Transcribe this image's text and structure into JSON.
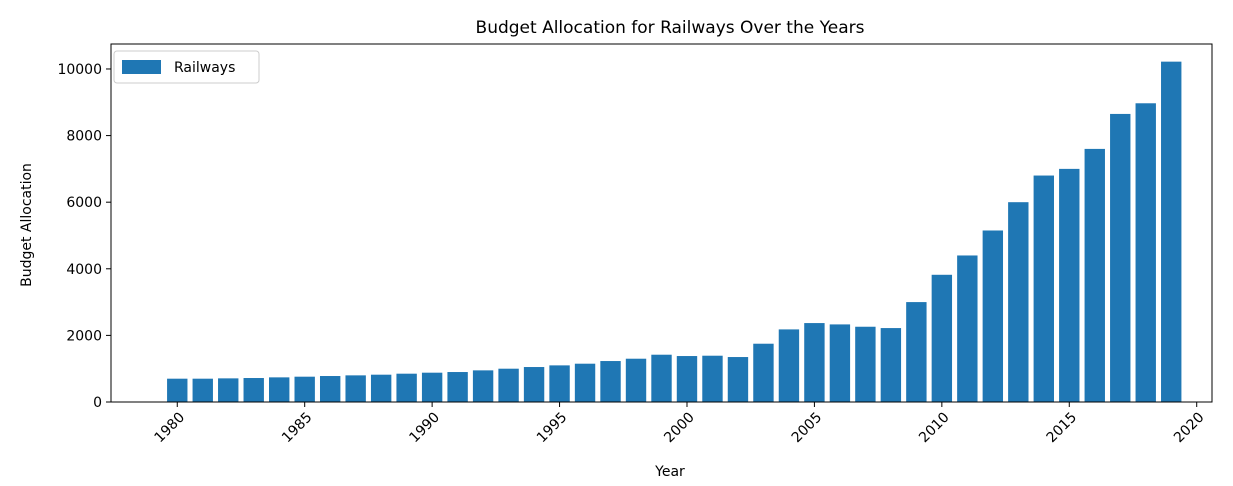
{
  "chart_data": {
    "type": "bar",
    "title": "Budget Allocation for Railways Over the Years",
    "xlabel": "Year",
    "ylabel": "Budget Allocation",
    "xlim": [
      1977.4,
      2020.6
    ],
    "ylim": [
      0,
      10750
    ],
    "xticks": [
      1980,
      1985,
      1990,
      1995,
      2000,
      2005,
      2010,
      2015,
      2020
    ],
    "yticks": [
      0,
      2000,
      4000,
      6000,
      8000,
      10000
    ],
    "grid": false,
    "legend": {
      "position": "top-left",
      "entries": [
        "Railways"
      ]
    },
    "colors": {
      "bar": "#1f77b4"
    },
    "series": [
      {
        "name": "Railways",
        "x": [
          1980,
          1981,
          1982,
          1983,
          1984,
          1985,
          1986,
          1987,
          1988,
          1989,
          1990,
          1991,
          1992,
          1993,
          1994,
          1995,
          1996,
          1997,
          1998,
          1999,
          2000,
          2001,
          2002,
          2003,
          2004,
          2005,
          2006,
          2007,
          2008,
          2009,
          2010,
          2011,
          2012,
          2013,
          2014,
          2015,
          2016,
          2017,
          2018,
          2019
        ],
        "values": [
          700,
          700,
          710,
          720,
          740,
          760,
          780,
          800,
          820,
          850,
          880,
          900,
          950,
          1000,
          1050,
          1100,
          1150,
          1230,
          1300,
          1420,
          1380,
          1390,
          1350,
          1750,
          2180,
          2370,
          2330,
          2260,
          2220,
          3000,
          3820,
          4400,
          5150,
          6000,
          6800,
          7000,
          7600,
          8650,
          8970,
          10220
        ]
      }
    ]
  }
}
